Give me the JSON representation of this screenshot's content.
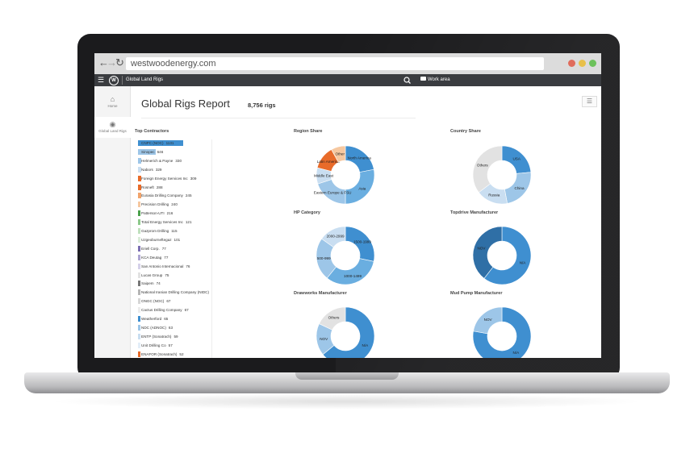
{
  "browser": {
    "url": "westwoodenergy.com"
  },
  "app_bar": {
    "logo_text": "W",
    "app_name": "Global Land Rigs",
    "work_area": "Work area"
  },
  "left_nav": [
    {
      "label": "Home",
      "icon": "home-icon"
    },
    {
      "label": "Global Land Rigs",
      "icon": "globe-icon"
    }
  ],
  "report": {
    "title": "Global Rigs Report",
    "rig_count": "8,756 rigs"
  },
  "top_contractors": {
    "title": "Top Contractors",
    "items": [
      {
        "name": "CNPC (NOC)",
        "count": "1131",
        "fraction": 1.0,
        "color": "#3f8fd0"
      },
      {
        "name": "Sinopec",
        "count": "646",
        "fraction": 0.4,
        "color": "#9dc6e8"
      },
      {
        "name": "Helmerich & Payne",
        "count": "330",
        "fraction": 0.08,
        "color": "#9dc6e8"
      },
      {
        "name": "Nabors",
        "count": "329",
        "fraction": 0.08,
        "color": "#c9def1"
      },
      {
        "name": "Foreign Energy Services Inc",
        "count": "309",
        "fraction": 0.08,
        "color": "#e86b2a"
      },
      {
        "name": "Rosneft",
        "count": "288",
        "fraction": 0.08,
        "color": "#e86b2a"
      },
      {
        "name": "Eurasia Drilling Company",
        "count": "245",
        "fraction": 0.08,
        "color": "#f2a46b"
      },
      {
        "name": "Precision Drilling",
        "count": "240",
        "fraction": 0.06,
        "color": "#f6c8a0"
      },
      {
        "name": "Patterson-UTI",
        "count": "216",
        "fraction": 0.06,
        "color": "#4aa14b"
      },
      {
        "name": "Total Energy Services Inc",
        "count": "121",
        "fraction": 0.05,
        "color": "#8cc98a"
      },
      {
        "name": "Gazprom Drilling",
        "count": "115",
        "fraction": 0.05,
        "color": "#bfe0bd"
      },
      {
        "name": "Uzgeoburneftegaz",
        "count": "101",
        "fraction": 0.04,
        "color": "#d9ecd8"
      },
      {
        "name": "Eriell Corp.",
        "count": "77",
        "fraction": 0.03,
        "color": "#7c6fb3"
      },
      {
        "name": "KCA Deutag",
        "count": "77",
        "fraction": 0.03,
        "color": "#aea6d3"
      },
      {
        "name": "San Antonio Internacional",
        "count": "76",
        "fraction": 0.03,
        "color": "#d5d1e9"
      },
      {
        "name": "Lucas Group",
        "count": "75",
        "fraction": 0.03,
        "color": "#e2e2e2"
      },
      {
        "name": "Saipem",
        "count": "74",
        "fraction": 0.03,
        "color": "#777777"
      },
      {
        "name": "National Iranian Drilling Company (NIDC)",
        "count": "70",
        "fraction": 0.03,
        "color": "#b5b5b5"
      },
      {
        "name": "ONGC (NOC)",
        "count": "67",
        "fraction": 0.03,
        "color": "#d6d6d6"
      },
      {
        "name": "Cactus Drilling Company",
        "count": "67",
        "fraction": 0.03,
        "color": "#ececec"
      },
      {
        "name": "Weatherford",
        "count": "65",
        "fraction": 0.03,
        "color": "#3f8fd0"
      },
      {
        "name": "NDC (ADNOC)",
        "count": "63",
        "fraction": 0.03,
        "color": "#9dc6e8"
      },
      {
        "name": "ENTP (Sonatrach)",
        "count": "59",
        "fraction": 0.03,
        "color": "#c9def1"
      },
      {
        "name": "Unit Drilling Co",
        "count": "57",
        "fraction": 0.03,
        "color": "#e3eef8"
      },
      {
        "name": "ENAFOR (Sonatrach)",
        "count": "52",
        "fraction": 0.03,
        "color": "#e86b2a"
      }
    ]
  },
  "chart_data": [
    {
      "type": "pie",
      "title": "Region Share",
      "labels": [
        "North America",
        "Asia",
        "Eastern Europe & FSU",
        "Middle East",
        "Latin America",
        "Other"
      ],
      "values": [
        22,
        28,
        20,
        9,
        13,
        8
      ],
      "colors": [
        "#3f8fd0",
        "#6aaee0",
        "#9dc6e8",
        "#c9def1",
        "#e86b2a",
        "#f6c8a0"
      ]
    },
    {
      "type": "pie",
      "title": "Country Share",
      "labels": [
        "USA",
        "China",
        "Russia",
        "Others"
      ],
      "values": [
        16,
        16,
        12,
        24
      ],
      "colors": [
        "#3f8fd0",
        "#9dc6e8",
        "#c9def1",
        "#e2e2e2"
      ]
    },
    {
      "type": "pie",
      "title": "HP Category",
      "labels": [
        "1500-1999",
        "1000-1499",
        "500-999",
        "2000-2999"
      ],
      "values": [
        26,
        30,
        22,
        14
      ],
      "colors": [
        "#3f8fd0",
        "#6aaee0",
        "#9dc6e8",
        "#c9def1"
      ]
    },
    {
      "type": "pie",
      "title": "Topdrive Manufacturer",
      "labels": [
        "N/A",
        "NOV"
      ],
      "values": [
        46,
        30
      ],
      "colors": [
        "#3f8fd0",
        "#2f6fa6"
      ]
    },
    {
      "type": "pie",
      "title": "Drawworks Manufacturer",
      "labels": [
        "N/A",
        "NOV",
        "Others"
      ],
      "values": [
        50,
        14,
        14
      ],
      "colors": [
        "#3f8fd0",
        "#9dc6e8",
        "#e2e2e2"
      ]
    },
    {
      "type": "pie",
      "title": "Mud Pump Manufacturer",
      "labels": [
        "N/A",
        "NOV"
      ],
      "values": [
        56,
        16
      ],
      "colors": [
        "#3f8fd0",
        "#9dc6e8"
      ]
    }
  ]
}
